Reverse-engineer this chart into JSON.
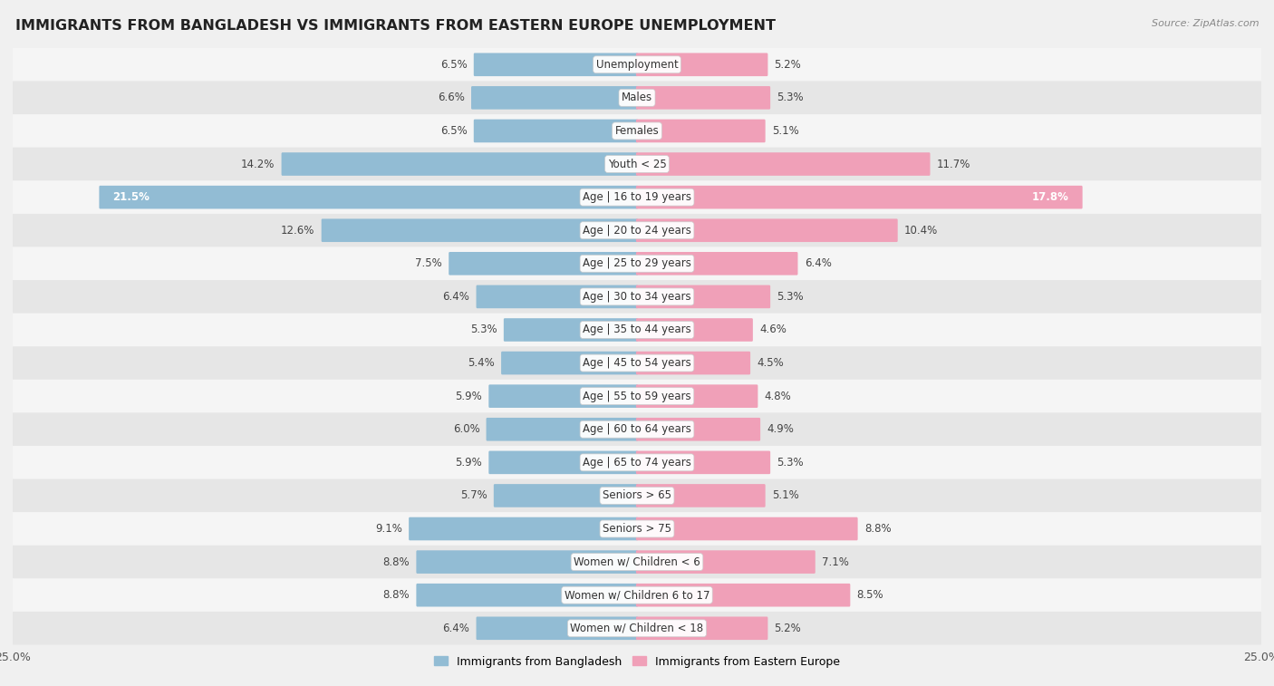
{
  "title": "IMMIGRANTS FROM BANGLADESH VS IMMIGRANTS FROM EASTERN EUROPE UNEMPLOYMENT",
  "source": "Source: ZipAtlas.com",
  "categories": [
    "Unemployment",
    "Males",
    "Females",
    "Youth < 25",
    "Age | 16 to 19 years",
    "Age | 20 to 24 years",
    "Age | 25 to 29 years",
    "Age | 30 to 34 years",
    "Age | 35 to 44 years",
    "Age | 45 to 54 years",
    "Age | 55 to 59 years",
    "Age | 60 to 64 years",
    "Age | 65 to 74 years",
    "Seniors > 65",
    "Seniors > 75",
    "Women w/ Children < 6",
    "Women w/ Children 6 to 17",
    "Women w/ Children < 18"
  ],
  "bangladesh_values": [
    6.5,
    6.6,
    6.5,
    14.2,
    21.5,
    12.6,
    7.5,
    6.4,
    5.3,
    5.4,
    5.9,
    6.0,
    5.9,
    5.7,
    9.1,
    8.8,
    8.8,
    6.4
  ],
  "eastern_europe_values": [
    5.2,
    5.3,
    5.1,
    11.7,
    17.8,
    10.4,
    6.4,
    5.3,
    4.6,
    4.5,
    4.8,
    4.9,
    5.3,
    5.1,
    8.8,
    7.1,
    8.5,
    5.2
  ],
  "bangladesh_color": "#92bcd4",
  "eastern_europe_color": "#f0a0b8",
  "axis_max": 25.0,
  "background_color": "#f0f0f0",
  "row_bg_light": "#f5f5f5",
  "row_bg_dark": "#e6e6e6",
  "title_fontsize": 11.5,
  "label_fontsize": 8.5,
  "value_fontsize": 8.5
}
